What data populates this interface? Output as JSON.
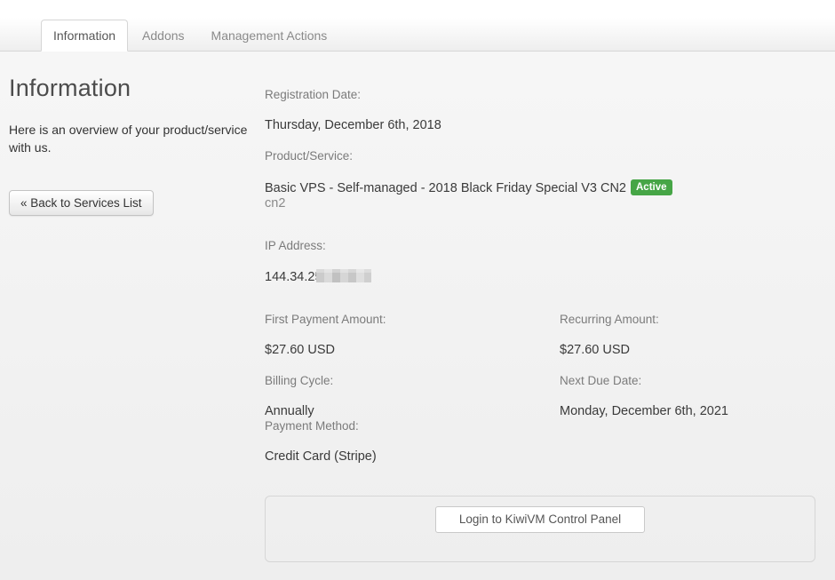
{
  "tabs": {
    "items": [
      {
        "label": "Information",
        "active": true
      },
      {
        "label": "Addons",
        "active": false
      },
      {
        "label": "Management Actions",
        "active": false
      }
    ]
  },
  "sidebar": {
    "title": "Information",
    "description": "Here is an overview of your product/service with us.",
    "back_button": "« Back to Services List"
  },
  "details": {
    "registration_date": {
      "label": "Registration Date:",
      "value": "Thursday, December 6th, 2018"
    },
    "product_service": {
      "label": "Product/Service:",
      "value": "Basic VPS - Self-managed - 2018 Black Friday Special V3 CN2",
      "badge": "Active",
      "subvalue": "cn2"
    },
    "ip_address": {
      "label": "IP Address:",
      "value": "144.34.25"
    },
    "first_payment": {
      "label": "First Payment Amount:",
      "value": "$27.60 USD"
    },
    "recurring": {
      "label": "Recurring Amount:",
      "value": "$27.60 USD"
    },
    "billing_cycle": {
      "label": "Billing Cycle:",
      "value": "Annually"
    },
    "next_due": {
      "label": "Next Due Date:",
      "value": "Monday, December 6th, 2021"
    },
    "payment_method": {
      "label": "Payment Method:",
      "value": "Credit Card (Stripe)"
    }
  },
  "panel": {
    "login_button": "Login to KiwiVM Control Panel"
  },
  "colors": {
    "badge_active": "#46a546"
  }
}
